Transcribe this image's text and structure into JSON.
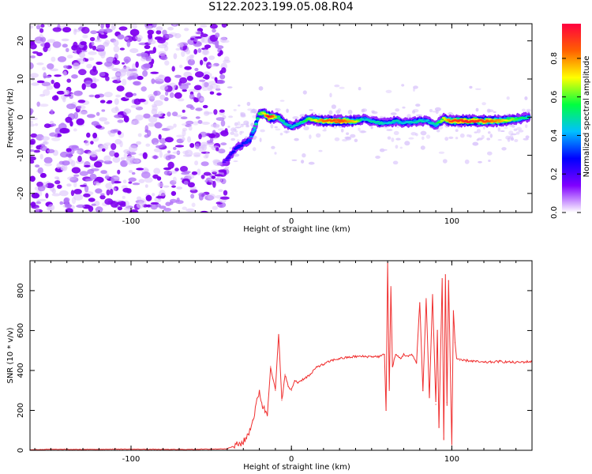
{
  "title": "S122.2023.199.05.08.R04",
  "chart_data": [
    {
      "type": "heatmap",
      "xlabel": "Height of straight line (km)",
      "ylabel": "Frequency (Hz)",
      "xlim": [
        -163,
        150
      ],
      "ylim": [
        -25,
        24.5
      ],
      "xticks": [
        -100,
        0,
        100
      ],
      "xtick_labels": [
        "-100",
        "0",
        "100"
      ],
      "yticks": [
        -20,
        -10,
        0,
        10,
        20
      ],
      "ytick_labels": [
        "-20",
        "-10",
        "0",
        "10",
        "20"
      ],
      "grid": false,
      "noise_region_x": [
        -163,
        -40
      ],
      "ridge_x": [
        -42,
        -38,
        -34,
        -30,
        -26,
        -23,
        -20,
        -17,
        -14,
        -11,
        -8,
        -4,
        0,
        5,
        10,
        20,
        30,
        40,
        45,
        50,
        55,
        60,
        65,
        70,
        80,
        85,
        90,
        95,
        100,
        110,
        120,
        130,
        140,
        148
      ],
      "ridge_freq": [
        -12,
        -10,
        -8,
        -7,
        -6,
        -3,
        1,
        1,
        0,
        0,
        0,
        -1.5,
        -2.5,
        -1.5,
        -0.5,
        -1,
        -1,
        -1,
        -0.5,
        -1,
        -1.5,
        -1.5,
        -1,
        -1.5,
        -1,
        -1,
        -2,
        -0.5,
        -1,
        -1,
        -1,
        -1,
        -0.5,
        0
      ],
      "ridge_amplitude": [
        0.2,
        0.25,
        0.3,
        0.3,
        0.35,
        0.5,
        0.6,
        0.7,
        1.0,
        0.85,
        0.55,
        0.5,
        0.45,
        0.5,
        0.6,
        0.85,
        0.9,
        0.75,
        0.45,
        0.5,
        0.5,
        0.45,
        0.5,
        0.45,
        0.5,
        0.45,
        0.5,
        0.7,
        0.9,
        0.95,
        0.9,
        0.8,
        0.6,
        0.5
      ],
      "colorbar": {
        "label": "Normalized spectral amplitude",
        "range": [
          0,
          0.98
        ],
        "ticks": [
          0.0,
          0.2,
          0.4,
          0.6,
          0.8
        ],
        "tick_labels": [
          "0.0",
          "0.2",
          "0.4",
          "0.6",
          "0.8"
        ],
        "colormap": [
          "#ffffff",
          "#8000ff",
          "#0000ff",
          "#00c0ff",
          "#00ff40",
          "#ffff00",
          "#ff6000",
          "#ff0040"
        ]
      }
    },
    {
      "type": "line",
      "xlabel": "Height of straight line (km)",
      "ylabel": "SNR (10 * v/v)",
      "xlim": [
        -163,
        150
      ],
      "ylim": [
        0,
        950
      ],
      "xticks": [
        -100,
        0,
        100
      ],
      "xtick_labels": [
        "-100",
        "0",
        "100"
      ],
      "yticks": [
        0,
        200,
        400,
        600,
        800
      ],
      "ytick_labels": [
        "0",
        "200",
        "400",
        "600",
        "800"
      ],
      "grid": false,
      "line_color": "#f03030",
      "series": [
        {
          "x": [
            -163,
            -150,
            -130,
            -110,
            -90,
            -70,
            -50,
            -40,
            -30,
            -27,
            -24,
            -20,
            -18,
            -15,
            -13,
            -10,
            -8,
            -6,
            -4,
            -2,
            0,
            2,
            4,
            8,
            12,
            16,
            20,
            25,
            30,
            35,
            40,
            45,
            50,
            55,
            58,
            59,
            60,
            61,
            62,
            63,
            65,
            68,
            70,
            73,
            75,
            78,
            80,
            82,
            84,
            86,
            88,
            90,
            91,
            92,
            94,
            95,
            96,
            97,
            98,
            100,
            101,
            102,
            103,
            105,
            110,
            120,
            130,
            140,
            150
          ],
          "y": [
            3,
            5,
            4,
            6,
            5,
            4,
            6,
            8,
            40,
            80,
            150,
            300,
            220,
            180,
            420,
            300,
            580,
            250,
            380,
            320,
            300,
            350,
            340,
            360,
            380,
            420,
            430,
            450,
            460,
            465,
            470,
            470,
            470,
            470,
            480,
            200,
            940,
            300,
            820,
            420,
            480,
            460,
            480,
            470,
            480,
            440,
            740,
            300,
            760,
            270,
            780,
            230,
            600,
            120,
            860,
            60,
            880,
            240,
            850,
            20,
            700,
            540,
            460,
            450,
            450,
            440,
            445,
            440,
            445
          ]
        }
      ]
    }
  ]
}
